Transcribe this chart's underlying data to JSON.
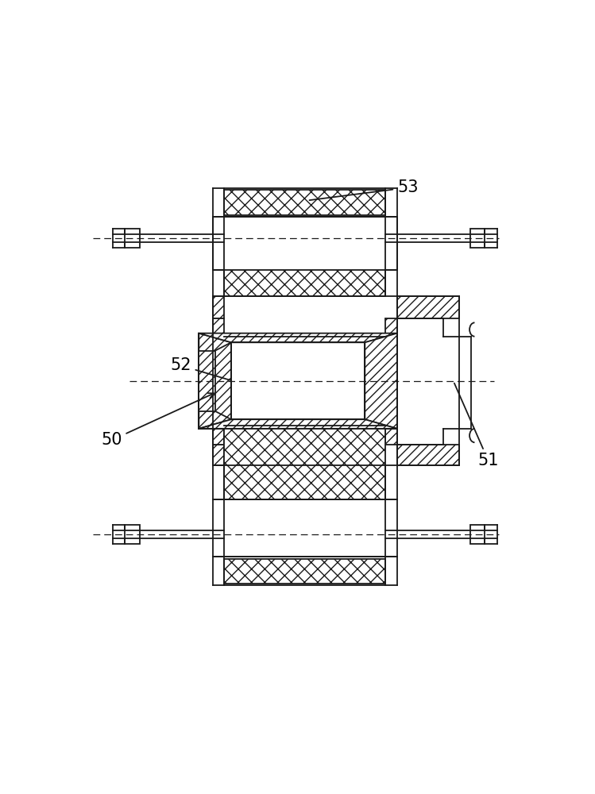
{
  "bg_color": "#ffffff",
  "line_color": "#1a1a1a",
  "lw": 1.3,
  "fig_width": 7.49,
  "fig_height": 10.0
}
